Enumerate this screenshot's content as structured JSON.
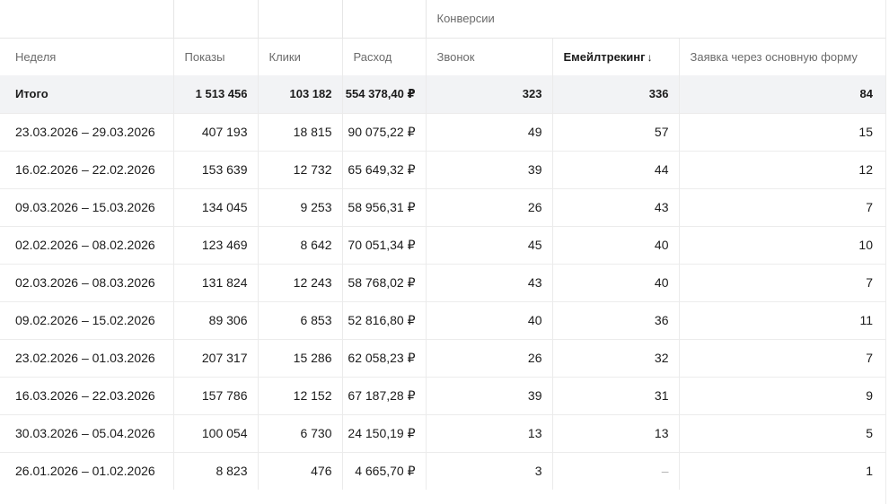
{
  "headers": {
    "group_conversions": "Конверсии",
    "week": "Неделя",
    "impressions": "Показы",
    "clicks": "Клики",
    "cost": "Расход",
    "call": "Звонок",
    "email_tracking": "Емейлтрекинг",
    "email_tracking_sort": "↓",
    "form_request": "Заявка через основную форму"
  },
  "total": {
    "label": "Итого",
    "impressions": "1 513 456",
    "clicks": "103 182",
    "cost": "554 378,40 ₽",
    "call": "323",
    "email_tracking": "336",
    "form_request": "84"
  },
  "rows": [
    {
      "week": "23.03.2026 – 29.03.2026",
      "impressions": "407 193",
      "clicks": "18 815",
      "cost": "90 075,22 ₽",
      "call": "49",
      "email_tracking": "57",
      "form_request": "15"
    },
    {
      "week": "16.02.2026 – 22.02.2026",
      "impressions": "153 639",
      "clicks": "12 732",
      "cost": "65 649,32 ₽",
      "call": "39",
      "email_tracking": "44",
      "form_request": "12"
    },
    {
      "week": "09.03.2026 – 15.03.2026",
      "impressions": "134 045",
      "clicks": "9 253",
      "cost": "58 956,31 ₽",
      "call": "26",
      "email_tracking": "43",
      "form_request": "7"
    },
    {
      "week": "02.02.2026 – 08.02.2026",
      "impressions": "123 469",
      "clicks": "8 642",
      "cost": "70 051,34 ₽",
      "call": "45",
      "email_tracking": "40",
      "form_request": "10"
    },
    {
      "week": "02.03.2026 – 08.03.2026",
      "impressions": "131 824",
      "clicks": "12 243",
      "cost": "58 768,02 ₽",
      "call": "43",
      "email_tracking": "40",
      "form_request": "7"
    },
    {
      "week": "09.02.2026 – 15.02.2026",
      "impressions": "89 306",
      "clicks": "6 853",
      "cost": "52 816,80 ₽",
      "call": "40",
      "email_tracking": "36",
      "form_request": "11"
    },
    {
      "week": "23.02.2026 – 01.03.2026",
      "impressions": "207 317",
      "clicks": "15 286",
      "cost": "62 058,23 ₽",
      "call": "26",
      "email_tracking": "32",
      "form_request": "7"
    },
    {
      "week": "16.03.2026 – 22.03.2026",
      "impressions": "157 786",
      "clicks": "12 152",
      "cost": "67 187,28 ₽",
      "call": "39",
      "email_tracking": "31",
      "form_request": "9"
    },
    {
      "week": "30.03.2026 – 05.04.2026",
      "impressions": "100 054",
      "clicks": "6 730",
      "cost": "24 150,19 ₽",
      "call": "13",
      "email_tracking": "13",
      "form_request": "5"
    },
    {
      "week": "26.01.2026 – 01.02.2026",
      "impressions": "8 823",
      "clicks": "476",
      "cost": "4 665,70 ₽",
      "call": "3",
      "email_tracking": "–",
      "form_request": "1"
    }
  ]
}
